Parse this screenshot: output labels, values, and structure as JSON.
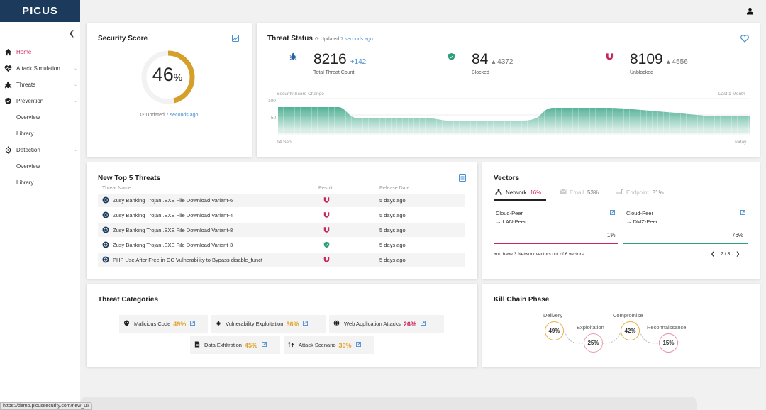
{
  "app": {
    "logo": "PICUS",
    "status_url": "https://demo.picussecurity.com/new_ui/"
  },
  "sidebar": {
    "items": [
      {
        "label": "Home",
        "icon": "home-icon"
      },
      {
        "label": "Attack Simulation",
        "icon": "heartbeat-icon"
      },
      {
        "label": "Threats",
        "icon": "bug-icon"
      },
      {
        "label": "Prevention",
        "icon": "shield-icon"
      },
      {
        "label": "Overview"
      },
      {
        "label": "Library"
      },
      {
        "label": "Detection",
        "icon": "target-icon"
      },
      {
        "label": "Overview"
      },
      {
        "label": "Library"
      }
    ]
  },
  "security": {
    "title": "Security Score",
    "score": "46",
    "unit": "%",
    "score_value": 46,
    "updated_label": "Updated",
    "updated_time": "7 seconds ago",
    "ring_color": "#d4a02a"
  },
  "threat_status": {
    "title": "Threat Status",
    "updated_label": "Updated",
    "updated_time": "7 seconds ago",
    "total": {
      "value": "8216",
      "delta": "+142",
      "label": "Total Threat Count"
    },
    "blocked": {
      "value": "84",
      "delta": "4372",
      "label": "Blocked"
    },
    "unblocked": {
      "value": "8109",
      "delta": "4556",
      "label": "Unblocked"
    },
    "chart": {
      "title": "Security Score Change",
      "range": "Last 1 Month",
      "y_ticks": [
        "100",
        "50"
      ],
      "x_start": "14 Sep",
      "x_end": "Today"
    }
  },
  "top5": {
    "title": "New Top 5 Threats",
    "headers": {
      "name": "Threat Name",
      "result": "Result",
      "date": "Release Date"
    },
    "rows": [
      {
        "name": "Zusy Banking Trojan .EXE File Download Variant-6",
        "result": "unblocked",
        "date": "5 days ago"
      },
      {
        "name": "Zusy Banking Trojan .EXE File Download Variant-4",
        "result": "unblocked",
        "date": "5 days ago"
      },
      {
        "name": "Zusy Banking Trojan .EXE File Download Variant-8",
        "result": "unblocked",
        "date": "5 days ago"
      },
      {
        "name": "Zusy Banking Trojan .EXE File Download Variant-3",
        "result": "blocked",
        "date": "5 days ago"
      },
      {
        "name": "PHP Use After Free in GC Vulnerability to Bypass disable_funct",
        "result": "unblocked",
        "date": "5 days ago"
      }
    ]
  },
  "vectors": {
    "title": "Vectors",
    "tabs": [
      {
        "label": "Network",
        "pct": "16%"
      },
      {
        "label": "Email",
        "pct": "53%"
      },
      {
        "label": "Endpoint",
        "pct": "81%"
      }
    ],
    "items": [
      {
        "from": "Cloud-Peer",
        "to": "→ LAN-Peer",
        "pct": "1%",
        "color": "#c8265f"
      },
      {
        "from": "Cloud-Peer",
        "to": "→ DMZ-Peer",
        "pct": "76%",
        "color": "#2e9e7e"
      }
    ],
    "footer": "You have 3 Network vectors out of 6 vectors",
    "pager": "2 / 3"
  },
  "categories": {
    "title": "Threat Categories",
    "items": [
      {
        "label": "Malicious Code",
        "pct": "49%"
      },
      {
        "label": "Vulnerability Exploitation",
        "pct": "36%"
      },
      {
        "label": "Web Application Attacks",
        "pct": "26%"
      },
      {
        "label": "Data Exfiltration",
        "pct": "45%"
      },
      {
        "label": "Attack Scenario",
        "pct": "30%"
      }
    ]
  },
  "killchain": {
    "title": "Kill Chain Phase",
    "phases": [
      {
        "label": "Delivery",
        "pct": "49%"
      },
      {
        "label": "Exploitation",
        "pct": "25%"
      },
      {
        "label": "Compromise",
        "pct": "42%"
      },
      {
        "label": "Reconnaissance",
        "pct": "15%"
      }
    ]
  }
}
